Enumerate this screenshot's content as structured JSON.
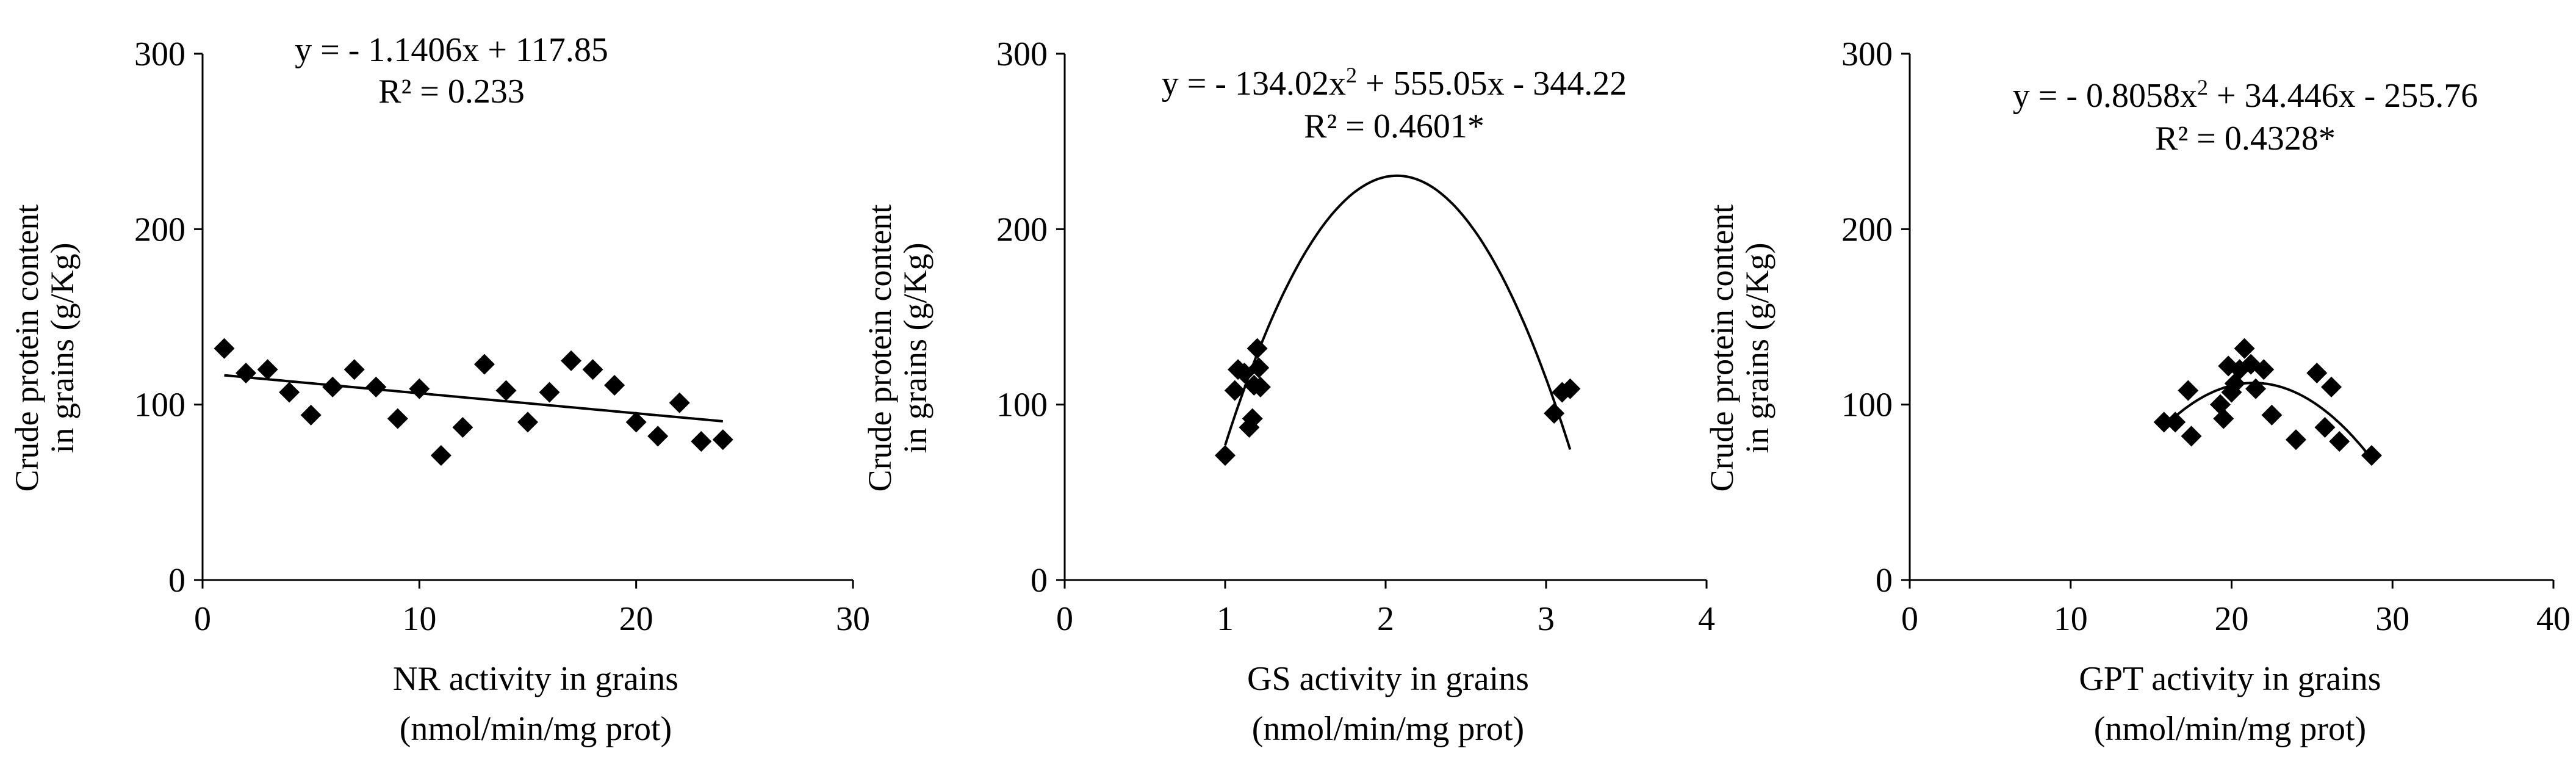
{
  "chart_data": [
    {
      "type": "scatter",
      "title": "",
      "xlabel_line1": "NR activity  in grains",
      "xlabel_line2": "(nmol/min/mg  prot)",
      "ylabel_line1": "Crude protein content",
      "ylabel_line2": "in grains  (g/Kg)",
      "xlim": [
        0,
        30
      ],
      "ylim": [
        0,
        300
      ],
      "xticks": [
        0,
        10,
        20,
        30
      ],
      "yticks": [
        0,
        100,
        200,
        300
      ],
      "grid": false,
      "points": [
        {
          "x": 1,
          "y": 132
        },
        {
          "x": 2,
          "y": 118
        },
        {
          "x": 3,
          "y": 120
        },
        {
          "x": 4,
          "y": 107
        },
        {
          "x": 5,
          "y": 94
        },
        {
          "x": 6,
          "y": 110
        },
        {
          "x": 7,
          "y": 120
        },
        {
          "x": 8,
          "y": 110
        },
        {
          "x": 9,
          "y": 92
        },
        {
          "x": 10,
          "y": 109
        },
        {
          "x": 11,
          "y": 71
        },
        {
          "x": 12,
          "y": 87
        },
        {
          "x": 13,
          "y": 123
        },
        {
          "x": 14,
          "y": 108
        },
        {
          "x": 15,
          "y": 90
        },
        {
          "x": 16,
          "y": 107
        },
        {
          "x": 17,
          "y": 125
        },
        {
          "x": 18,
          "y": 120
        },
        {
          "x": 19,
          "y": 111
        },
        {
          "x": 20,
          "y": 90
        },
        {
          "x": 21,
          "y": 82
        },
        {
          "x": 22,
          "y": 101
        },
        {
          "x": 23,
          "y": 79
        },
        {
          "x": 24,
          "y": 80
        }
      ],
      "trendline": {
        "kind": "linear",
        "a": -1.1406,
        "b": 117.85,
        "x_range": [
          1,
          24
        ]
      },
      "equation": "y =  - 1.1406x + 117.85",
      "r2_prefix": "R² = ",
      "r2_value": "0.233"
    },
    {
      "type": "scatter",
      "title": "",
      "xlabel_line1": "GS activity  in grains",
      "xlabel_line2": "(nmol/min/mg  prot)",
      "ylabel_line1": "Crude protein content",
      "ylabel_line2": "in grains  (g/Kg)",
      "xlim": [
        0,
        4
      ],
      "ylim": [
        0,
        300
      ],
      "xticks": [
        0,
        1,
        2,
        3,
        4
      ],
      "yticks": [
        0,
        100,
        200,
        300
      ],
      "grid": false,
      "points": [
        {
          "x": 1.0,
          "y": 71
        },
        {
          "x": 1.06,
          "y": 108
        },
        {
          "x": 1.08,
          "y": 120
        },
        {
          "x": 1.12,
          "y": 118
        },
        {
          "x": 1.15,
          "y": 87
        },
        {
          "x": 1.17,
          "y": 92
        },
        {
          "x": 1.18,
          "y": 111
        },
        {
          "x": 1.2,
          "y": 132
        },
        {
          "x": 1.21,
          "y": 121
        },
        {
          "x": 1.22,
          "y": 110
        },
        {
          "x": 3.05,
          "y": 95
        },
        {
          "x": 3.1,
          "y": 107
        },
        {
          "x": 3.15,
          "y": 109
        }
      ],
      "trendline": {
        "kind": "quadratic",
        "a": -134.02,
        "b": 555.05,
        "c": -344.22,
        "x_range": [
          1.0,
          3.15
        ]
      },
      "equation_pre": "y = - 134.02x",
      "equation_sup": "2",
      "equation_post": " + 555.05x - 344.22",
      "r2_prefix": "R² = ",
      "r2_value": "0.4601*"
    },
    {
      "type": "scatter",
      "title": "",
      "xlabel_line1": "GPT activity in grains",
      "xlabel_line2": "(nmol/min/mg  prot)",
      "ylabel_line1": "Crude protein content",
      "ylabel_line2": "in grains  (g/Kg)",
      "xlim": [
        0,
        40
      ],
      "ylim": [
        0,
        300
      ],
      "xticks": [
        0,
        10,
        20,
        30,
        40
      ],
      "yticks": [
        0,
        100,
        200,
        300
      ],
      "grid": false,
      "points": [
        {
          "x": 15.8,
          "y": 90
        },
        {
          "x": 16.5,
          "y": 90
        },
        {
          "x": 17.3,
          "y": 108
        },
        {
          "x": 17.5,
          "y": 82
        },
        {
          "x": 19.3,
          "y": 100
        },
        {
          "x": 19.5,
          "y": 92
        },
        {
          "x": 19.8,
          "y": 122
        },
        {
          "x": 20.0,
          "y": 107
        },
        {
          "x": 20.2,
          "y": 112
        },
        {
          "x": 20.5,
          "y": 120
        },
        {
          "x": 20.8,
          "y": 132
        },
        {
          "x": 21.2,
          "y": 123
        },
        {
          "x": 21.5,
          "y": 109
        },
        {
          "x": 22.0,
          "y": 120
        },
        {
          "x": 22.5,
          "y": 94
        },
        {
          "x": 24.0,
          "y": 80
        },
        {
          "x": 25.3,
          "y": 118
        },
        {
          "x": 25.8,
          "y": 87
        },
        {
          "x": 26.2,
          "y": 110
        },
        {
          "x": 26.7,
          "y": 79
        },
        {
          "x": 28.7,
          "y": 71
        }
      ],
      "trendline": {
        "kind": "quadratic",
        "a": -0.8058,
        "b": 34.446,
        "c": -255.76,
        "x_range": [
          15.8,
          28.7
        ]
      },
      "equation_pre": "y = - 0.8058x",
      "equation_sup": "2",
      "equation_post": " + 34.446x - 255.76",
      "r2_prefix": "R² = ",
      "r2_value": "0.4328*"
    }
  ]
}
